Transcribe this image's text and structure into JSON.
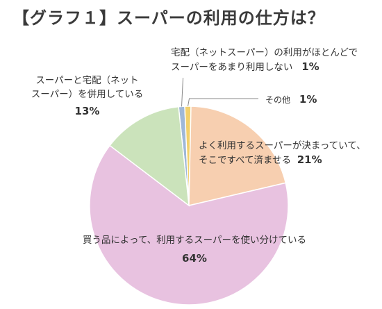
{
  "chart_data": {
    "type": "pie",
    "title": "【グラフ１】スーパーの利用の仕方は？",
    "slices": [
      {
        "label_lines": [
          "宅配（ネットスーパー）の利用がほとんどで",
          "スーパーをあまり利用しない"
        ],
        "value_label": "1%",
        "value": 1,
        "color": "#9fb8d8"
      },
      {
        "label_lines": [
          "その他"
        ],
        "value_label": "1%",
        "value": 1,
        "color": "#f2d06b"
      },
      {
        "label_lines": [
          "よく利用するスーパーが決まっていて、",
          "そこですべて済ませる"
        ],
        "value_label": "21%",
        "value": 21,
        "color": "#f7cfb0"
      },
      {
        "label_lines": [
          "買う品によって、利用するスーパーを使い分けている"
        ],
        "value_label": "64%",
        "value": 64,
        "color": "#e8c2e0"
      },
      {
        "label_lines": [
          "スーパーと宅配（ネット",
          "スーパー）を併用している"
        ],
        "value_label": "13%",
        "value": 13,
        "color": "#cbe3bb"
      }
    ],
    "start_angle_deg": -6,
    "direction": "clockwise"
  }
}
